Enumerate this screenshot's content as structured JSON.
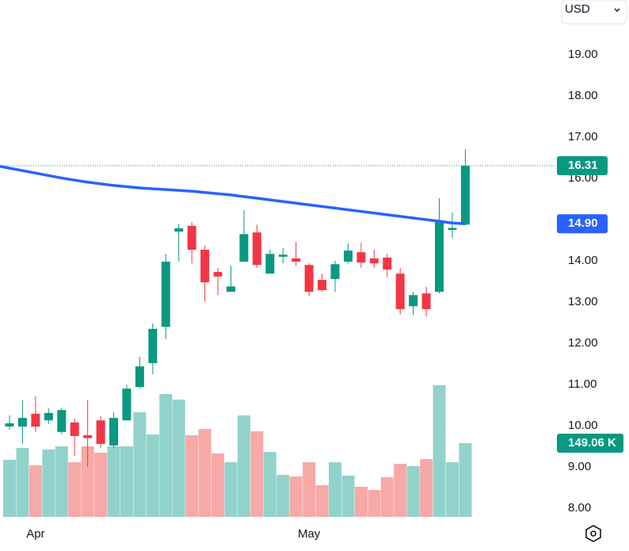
{
  "chart_data": {
    "type": "candlestick",
    "currency": "USD",
    "categories": [
      null,
      null,
      "Apr",
      null,
      null,
      null,
      null,
      null,
      null,
      null,
      null,
      null,
      null,
      null,
      null,
      null,
      null,
      null,
      null,
      null,
      null,
      null,
      null,
      "May",
      null,
      null,
      null,
      null,
      null,
      null,
      null,
      null,
      null,
      null,
      null,
      null
    ],
    "candles": [
      {
        "o": 9.98,
        "h": 10.25,
        "l": 9.9,
        "c": 10.06
      },
      {
        "o": 9.98,
        "h": 10.62,
        "l": 9.56,
        "c": 10.19
      },
      {
        "o": 10.29,
        "h": 10.71,
        "l": 9.85,
        "c": 9.98
      },
      {
        "o": 10.13,
        "h": 10.42,
        "l": 10.04,
        "c": 10.31
      },
      {
        "o": 9.85,
        "h": 10.44,
        "l": 9.79,
        "c": 10.38
      },
      {
        "o": 10.08,
        "h": 10.17,
        "l": 9.27,
        "c": 9.75
      },
      {
        "o": 9.77,
        "h": 10.62,
        "l": 9.0,
        "c": 9.7
      },
      {
        "o": 10.13,
        "h": 10.23,
        "l": 9.46,
        "c": 9.56
      },
      {
        "o": 9.52,
        "h": 10.33,
        "l": 9.46,
        "c": 10.19
      },
      {
        "o": 10.13,
        "h": 11.0,
        "l": 10.13,
        "c": 10.9
      },
      {
        "o": 10.94,
        "h": 11.67,
        "l": 10.9,
        "c": 11.44
      },
      {
        "o": 11.52,
        "h": 12.48,
        "l": 11.25,
        "c": 12.35
      },
      {
        "o": 12.4,
        "h": 14.17,
        "l": 12.1,
        "c": 13.98
      },
      {
        "o": 14.71,
        "h": 14.9,
        "l": 13.98,
        "c": 14.79
      },
      {
        "o": 14.85,
        "h": 14.94,
        "l": 13.94,
        "c": 14.27
      },
      {
        "o": 14.27,
        "h": 14.37,
        "l": 13.02,
        "c": 13.48
      },
      {
        "o": 13.73,
        "h": 13.83,
        "l": 13.17,
        "c": 13.62
      },
      {
        "o": 13.25,
        "h": 13.88,
        "l": 13.25,
        "c": 13.38
      },
      {
        "o": 13.98,
        "h": 15.23,
        "l": 13.98,
        "c": 14.65
      },
      {
        "o": 14.69,
        "h": 14.88,
        "l": 13.83,
        "c": 13.9
      },
      {
        "o": 13.69,
        "h": 14.27,
        "l": 13.69,
        "c": 14.17
      },
      {
        "o": 14.1,
        "h": 14.31,
        "l": 13.94,
        "c": 14.15
      },
      {
        "o": 14.06,
        "h": 14.46,
        "l": 13.88,
        "c": 13.98
      },
      {
        "o": 13.9,
        "h": 13.94,
        "l": 13.15,
        "c": 13.25
      },
      {
        "o": 13.54,
        "h": 13.69,
        "l": 13.25,
        "c": 13.29
      },
      {
        "o": 13.56,
        "h": 14.0,
        "l": 13.25,
        "c": 13.92
      },
      {
        "o": 13.98,
        "h": 14.42,
        "l": 13.94,
        "c": 14.25
      },
      {
        "o": 14.21,
        "h": 14.44,
        "l": 13.83,
        "c": 13.96
      },
      {
        "o": 14.06,
        "h": 14.27,
        "l": 13.83,
        "c": 13.94
      },
      {
        "o": 14.08,
        "h": 14.17,
        "l": 13.6,
        "c": 13.79
      },
      {
        "o": 13.69,
        "h": 13.83,
        "l": 12.69,
        "c": 12.83
      },
      {
        "o": 12.9,
        "h": 13.25,
        "l": 12.69,
        "c": 13.17
      },
      {
        "o": 13.21,
        "h": 13.37,
        "l": 12.65,
        "c": 12.83
      },
      {
        "o": 13.25,
        "h": 15.52,
        "l": 13.21,
        "c": 14.94
      },
      {
        "o": 14.75,
        "h": 15.17,
        "l": 14.56,
        "c": 14.8
      },
      {
        "o": 14.88,
        "h": 16.71,
        "l": 14.88,
        "c": 16.31
      }
    ],
    "volumes": [
      115.4,
      139.5,
      104.2,
      136.3,
      142.7,
      110.6,
      142.7,
      129.8,
      142.7,
      142.7,
      211.6,
      166.7,
      248.5,
      237.2,
      165.1,
      177.9,
      128.2,
      110.6,
      205.2,
      173.1,
      131.4,
      85,
      81.8,
      110.6,
      64.1,
      110.6,
      83.4,
      60.9,
      54.5,
      80.2,
      107.4,
      102.6,
      117,
      266.1,
      110.6,
      149.06
    ],
    "volume_last_label": "149.06 K",
    "moving_average": {
      "color": "#2962ff",
      "last_label": "14.90",
      "values": [
        16.25,
        16.19,
        16.13,
        16.07,
        16.01,
        15.96,
        15.91,
        15.87,
        15.83,
        15.8,
        15.77,
        15.75,
        15.73,
        15.71,
        15.69,
        15.66,
        15.63,
        15.6,
        15.56,
        15.52,
        15.48,
        15.44,
        15.4,
        15.36,
        15.32,
        15.28,
        15.24,
        15.2,
        15.16,
        15.12,
        15.08,
        15.04,
        15.0,
        14.96,
        14.92,
        14.9
      ]
    },
    "up_color": "#089981",
    "down_color": "#f23645",
    "volume_up_color": "#92d2cc",
    "volume_down_color": "#f7a9a7",
    "ylim": [
      7.73,
      20.33
    ],
    "vlim": [
      0,
      400
    ],
    "yticks": [
      {
        "value": 8,
        "label": "8.00"
      },
      {
        "value": 9,
        "label": "9.00"
      },
      {
        "value": 10,
        "label": "10.00"
      },
      {
        "value": 11,
        "label": "11.00"
      },
      {
        "value": 12,
        "label": "12.00"
      },
      {
        "value": 13,
        "label": "13.00"
      },
      {
        "value": 14,
        "label": "14.00"
      },
      {
        "value": 15,
        "label": "15.00"
      },
      {
        "value": 16,
        "label": "16.00"
      },
      {
        "value": 17,
        "label": "17.00"
      },
      {
        "value": 18,
        "label": "18.00"
      },
      {
        "value": 19,
        "label": "19.00"
      }
    ]
  }
}
